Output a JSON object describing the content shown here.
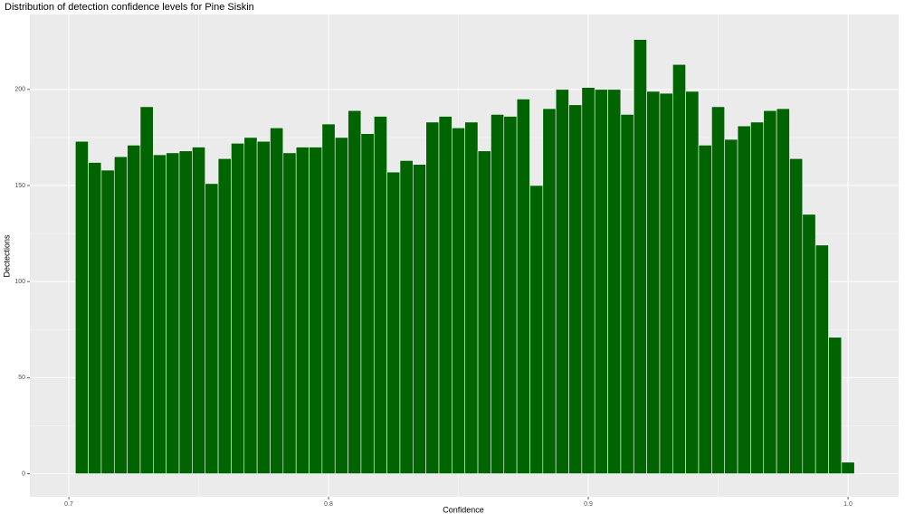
{
  "chart_data": {
    "type": "histogram",
    "title": "Distribution of detection confidence levels for Pine Siskin",
    "x_label": "Confidence",
    "y_label": "Dectections",
    "bins": [
      0.7025,
      0.7075,
      0.7125,
      0.7175,
      0.7225,
      0.7275,
      0.7325,
      0.7375,
      0.7425,
      0.7475,
      0.7525,
      0.7575,
      0.7625,
      0.7675,
      0.7725,
      0.7775,
      0.7825,
      0.7875,
      0.7925,
      0.7975,
      0.8025,
      0.8075,
      0.8125,
      0.8175,
      0.8225,
      0.8275,
      0.8325,
      0.8375,
      0.8425,
      0.8475,
      0.8525,
      0.8575,
      0.8625,
      0.8675,
      0.8725,
      0.8775,
      0.8825,
      0.8875,
      0.8925,
      0.8975,
      0.9025,
      0.9075,
      0.9125,
      0.9175,
      0.9225,
      0.9275,
      0.9325,
      0.9375,
      0.9425,
      0.9475,
      0.9525,
      0.9575,
      0.9625,
      0.9675,
      0.9725,
      0.9775,
      0.9825,
      0.9875,
      0.9925,
      0.9975,
      1.0025
    ],
    "values": [
      173,
      162,
      158,
      165,
      171,
      191,
      166,
      167,
      168,
      170,
      151,
      164,
      172,
      175,
      173,
      180,
      167,
      170,
      170,
      182,
      175,
      189,
      177,
      186,
      157,
      163,
      161,
      183,
      186,
      180,
      183,
      168,
      187,
      186,
      195,
      150,
      190,
      200,
      192,
      201,
      200,
      200,
      187,
      226,
      199,
      198,
      213,
      199,
      171,
      191,
      174,
      181,
      183,
      189,
      190,
      164,
      135,
      119,
      71,
      6
    ],
    "color": "#006400",
    "xlim": [
      0.685,
      1.0195
    ],
    "ylim": [
      -12,
      239
    ],
    "xticks": [
      0.7,
      0.8,
      0.9,
      {
        "value": 1.0,
        "label": "1.0"
      }
    ],
    "yticks": [
      0,
      50,
      100,
      150,
      200
    ],
    "grid": true
  }
}
